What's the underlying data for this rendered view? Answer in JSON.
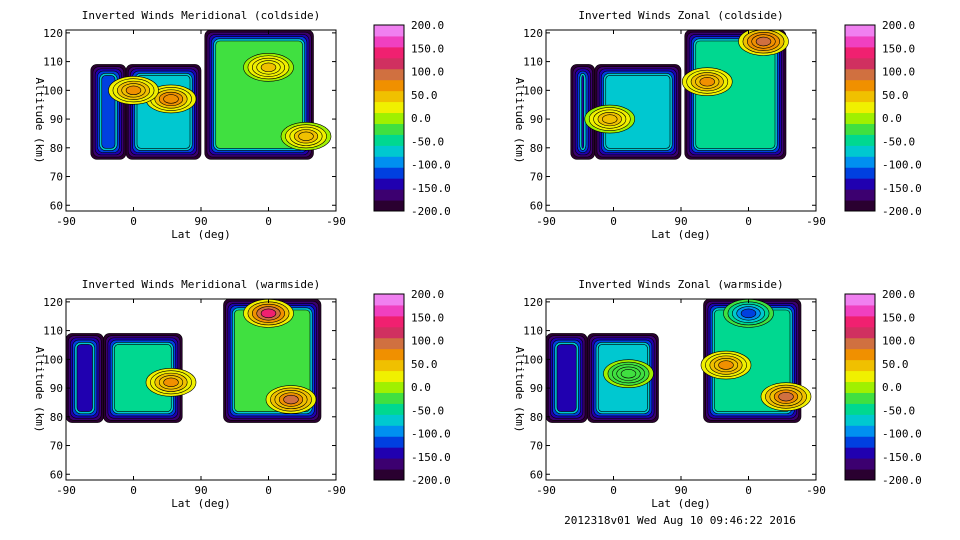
{
  "footer": "2012318v01 Wed Aug 10 09:46:22 2016",
  "colorbar": {
    "ticks": [
      "200.0",
      "150.0",
      "100.0",
      "50.0",
      "0.0",
      "-50.0",
      "-100.0",
      "-150.0",
      "-200.0"
    ],
    "range": [
      -200,
      200
    ],
    "colors": [
      "#2a0030",
      "#3c0070",
      "#2000b0",
      "#0040e0",
      "#0090f0",
      "#00c8d0",
      "#00d890",
      "#40e040",
      "#a0f000",
      "#f0f000",
      "#f0c000",
      "#f09000",
      "#d07040",
      "#d03060",
      "#f02070",
      "#f040c0",
      "#f080f0"
    ]
  },
  "chart_data": [
    {
      "type": "heatmap",
      "title": "Inverted Winds Meridional (coldside)",
      "xlabel": "Lat (deg)",
      "ylabel": "Altitude (km)",
      "x_ticks": [
        "-90",
        "0",
        "90",
        "0",
        "-90"
      ],
      "y_ticks": [
        "60",
        "70",
        "80",
        "90",
        "100",
        "110",
        "120"
      ],
      "ylim": [
        58,
        121
      ],
      "blobs": [
        {
          "lat_orbit": [
            -57,
            -10
          ],
          "alt": [
            76,
            109
          ],
          "base": -110
        },
        {
          "lat_orbit": [
            -10,
            90
          ],
          "alt": [
            76,
            109
          ],
          "base": -60
        },
        {
          "lat_orbit": [
            95,
            240
          ],
          "alt": [
            76,
            121
          ],
          "base": -20
        }
      ],
      "features": [
        {
          "lat_orbit": 50,
          "alt": 97,
          "value": 80
        },
        {
          "lat_orbit": 0,
          "alt": 100,
          "value": 60
        },
        {
          "lat_orbit": 180,
          "alt": 108,
          "value": 40
        },
        {
          "lat_orbit": 230,
          "alt": 84,
          "value": 50
        }
      ]
    },
    {
      "type": "heatmap",
      "title": "Inverted Winds Zonal (coldside)",
      "xlabel": "Lat (deg)",
      "ylabel": "Altitude (km)",
      "x_ticks": [
        "-90",
        "0",
        "90",
        "0",
        "-90"
      ],
      "y_ticks": [
        "60",
        "70",
        "80",
        "90",
        "100",
        "110",
        "120"
      ],
      "ylim": [
        58,
        121
      ],
      "blobs": [
        {
          "lat_orbit": [
            -57,
            -25
          ],
          "alt": [
            76,
            109
          ],
          "base": -150
        },
        {
          "lat_orbit": [
            -25,
            90
          ],
          "alt": [
            76,
            109
          ],
          "base": -60
        },
        {
          "lat_orbit": [
            95,
            230
          ],
          "alt": [
            76,
            121
          ],
          "base": -40
        }
      ],
      "features": [
        {
          "lat_orbit": -5,
          "alt": 90,
          "value": 50
        },
        {
          "lat_orbit": 125,
          "alt": 103,
          "value": 70
        },
        {
          "lat_orbit": 200,
          "alt": 117,
          "value": 100
        }
      ]
    },
    {
      "type": "heatmap",
      "title": "Inverted Winds Meridional (warmside)",
      "xlabel": "Lat (deg)",
      "ylabel": "Altitude (km)",
      "x_ticks": [
        "-90",
        "0",
        "90",
        "0",
        "-90"
      ],
      "y_ticks": [
        "60",
        "70",
        "80",
        "90",
        "100",
        "110",
        "120"
      ],
      "ylim": [
        58,
        121
      ],
      "blobs": [
        {
          "lat_orbit": [
            -90,
            -40
          ],
          "alt": [
            78,
            109
          ],
          "base": -130
        },
        {
          "lat_orbit": [
            -40,
            65
          ],
          "alt": [
            78,
            109
          ],
          "base": -40
        },
        {
          "lat_orbit": [
            120,
            250
          ],
          "alt": [
            78,
            121
          ],
          "base": -20
        }
      ],
      "features": [
        {
          "lat_orbit": 50,
          "alt": 92,
          "value": 60
        },
        {
          "lat_orbit": 180,
          "alt": 116,
          "value": 130
        },
        {
          "lat_orbit": 210,
          "alt": 86,
          "value": 90
        }
      ]
    },
    {
      "type": "heatmap",
      "title": "Inverted Winds Zonal (warmside)",
      "xlabel": "Lat (deg)",
      "ylabel": "Altitude (km)",
      "x_ticks": [
        "-90",
        "0",
        "90",
        "0",
        "-90"
      ],
      "y_ticks": [
        "60",
        "70",
        "80",
        "90",
        "100",
        "110",
        "120"
      ],
      "ylim": [
        58,
        121
      ],
      "blobs": [
        {
          "lat_orbit": [
            -90,
            -35
          ],
          "alt": [
            78,
            109
          ],
          "base": -140
        },
        {
          "lat_orbit": [
            -35,
            60
          ],
          "alt": [
            78,
            109
          ],
          "base": -70
        },
        {
          "lat_orbit": [
            120,
            250
          ],
          "alt": [
            78,
            121
          ],
          "base": -40
        }
      ],
      "features": [
        {
          "lat_orbit": 20,
          "alt": 95,
          "value": -30
        },
        {
          "lat_orbit": 150,
          "alt": 98,
          "value": 60
        },
        {
          "lat_orbit": 230,
          "alt": 87,
          "value": 90
        },
        {
          "lat_orbit": 180,
          "alt": 116,
          "value": -120
        }
      ]
    }
  ]
}
